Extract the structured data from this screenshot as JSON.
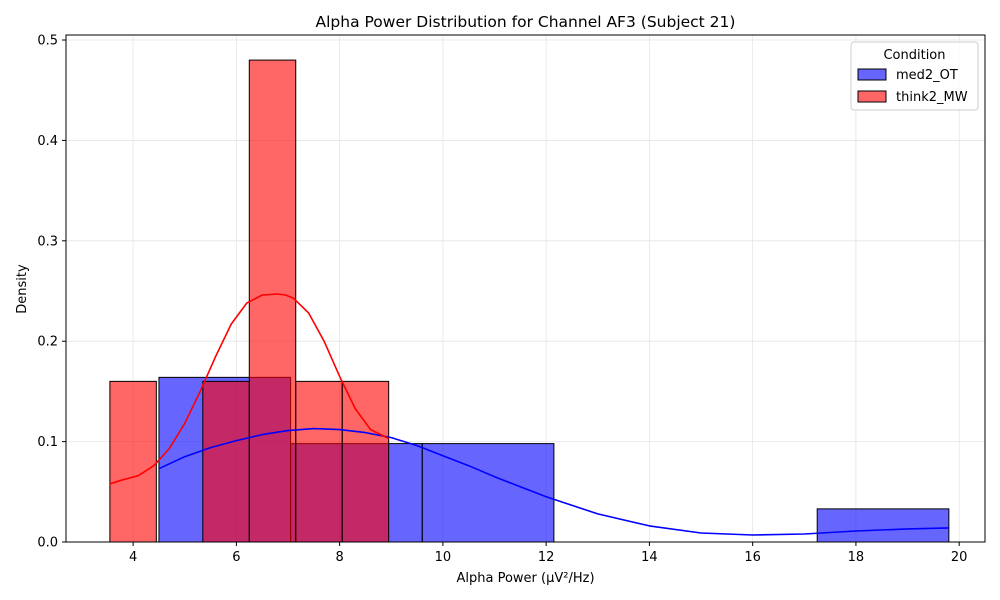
{
  "chart_data": {
    "type": "histogram",
    "title": "Alpha Power Distribution for Channel AF3 (Subject 21)",
    "xlabel": "Alpha Power (µV²/Hz)",
    "ylabel": "Density",
    "xlim": [
      2.7,
      20.5
    ],
    "ylim": [
      0,
      0.505
    ],
    "x_ticks": [
      4,
      6,
      8,
      10,
      12,
      14,
      16,
      18,
      20
    ],
    "y_ticks": [
      0.0,
      0.1,
      0.2,
      0.3,
      0.4,
      0.5
    ],
    "grid": true,
    "legend": {
      "title": "Condition",
      "placement": "top-right"
    },
    "series": [
      {
        "name": "med2_OT",
        "color": "#0000ff",
        "alpha": 0.6,
        "bins": [
          {
            "x0": 4.5,
            "x1": 7.05,
            "density": 0.164
          },
          {
            "x0": 7.05,
            "x1": 9.6,
            "density": 0.098
          },
          {
            "x0": 9.6,
            "x1": 12.15,
            "density": 0.098
          },
          {
            "x0": 12.15,
            "x1": 14.7,
            "density": 0.0
          },
          {
            "x0": 14.7,
            "x1": 17.25,
            "density": 0.0
          },
          {
            "x0": 17.25,
            "x1": 19.8,
            "density": 0.033
          }
        ],
        "kde": {
          "color": "#0000ff",
          "x": [
            4.5,
            5.0,
            5.5,
            6.0,
            6.5,
            7.0,
            7.5,
            8.0,
            8.5,
            9.0,
            9.5,
            10.0,
            10.5,
            11.0,
            11.5,
            12.0,
            13.0,
            14.0,
            15.0,
            16.0,
            17.0,
            18.0,
            19.0,
            19.8
          ],
          "y": [
            0.073,
            0.085,
            0.094,
            0.101,
            0.107,
            0.111,
            0.113,
            0.112,
            0.109,
            0.104,
            0.096,
            0.086,
            0.076,
            0.065,
            0.055,
            0.045,
            0.028,
            0.016,
            0.009,
            0.007,
            0.008,
            0.011,
            0.013,
            0.014
          ]
        }
      },
      {
        "name": "think2_MW",
        "color": "#ff0000",
        "alpha": 0.6,
        "bins": [
          {
            "x0": 3.55,
            "x1": 4.45,
            "density": 0.16
          },
          {
            "x0": 4.45,
            "x1": 5.35,
            "density": 0.0
          },
          {
            "x0": 5.35,
            "x1": 6.25,
            "density": 0.16
          },
          {
            "x0": 6.25,
            "x1": 7.15,
            "density": 0.48
          },
          {
            "x0": 7.15,
            "x1": 8.05,
            "density": 0.16
          },
          {
            "x0": 8.05,
            "x1": 8.95,
            "density": 0.16
          }
        ],
        "kde": {
          "color": "#ff0000",
          "x": [
            3.55,
            3.8,
            4.1,
            4.4,
            4.7,
            5.0,
            5.3,
            5.6,
            5.9,
            6.2,
            6.5,
            6.8,
            6.95,
            7.1,
            7.4,
            7.7,
            8.0,
            8.3,
            8.6,
            8.95
          ],
          "y": [
            0.058,
            0.062,
            0.066,
            0.076,
            0.093,
            0.118,
            0.15,
            0.185,
            0.217,
            0.238,
            0.246,
            0.247,
            0.246,
            0.243,
            0.228,
            0.2,
            0.165,
            0.133,
            0.112,
            0.103
          ]
        }
      }
    ]
  }
}
